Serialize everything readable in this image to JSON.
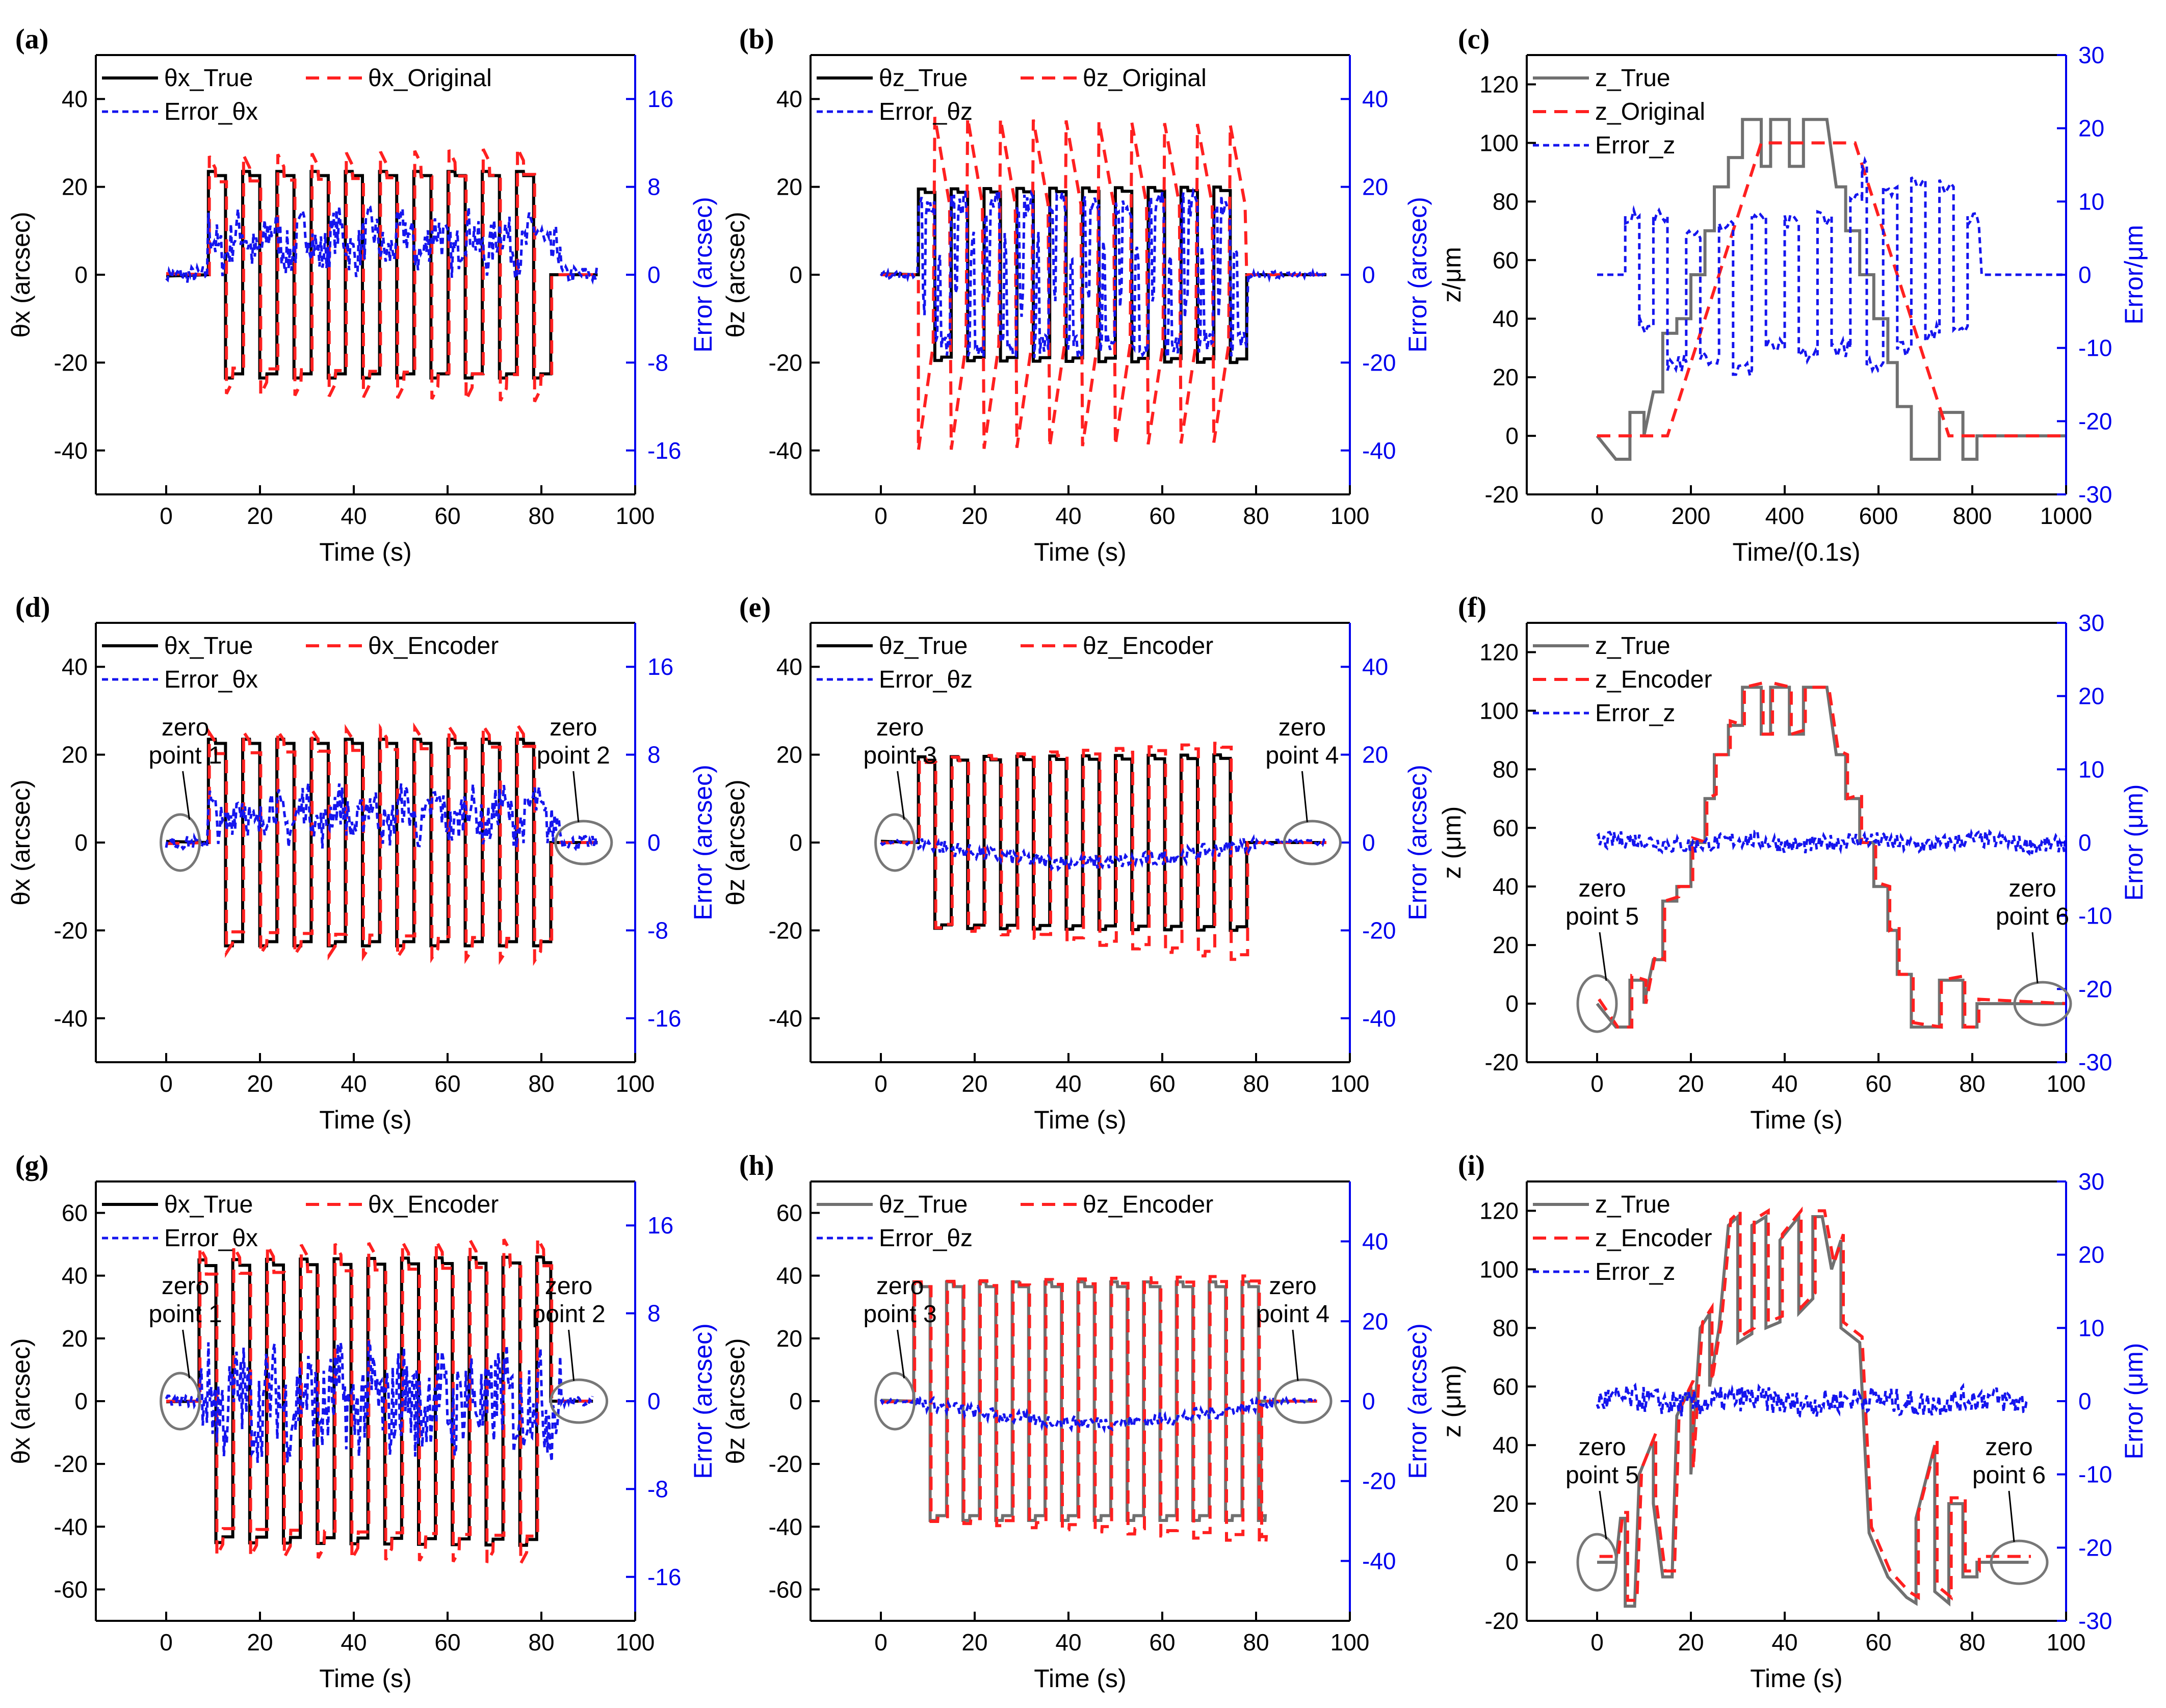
{
  "figure": {
    "colors": {
      "true_black": "#000000",
      "true_gray": "#707070",
      "red": "#ff2020",
      "blue": "#1515ee",
      "axis_blue": "#0000ee"
    },
    "series_styles": {
      "true": "solid",
      "estimate": "dashed",
      "error": "dotted"
    }
  },
  "chart_data": [
    {
      "panel": "(a)",
      "type": "line",
      "xlabel": "Time (s)",
      "ylabel": "θx (arcsec)",
      "ylabel_right": "Error (arcsec)",
      "xlim": [
        -15,
        100
      ],
      "ylim": [
        -50,
        50
      ],
      "ylim_right": [
        -20,
        20
      ],
      "xticks": [
        0,
        20,
        40,
        60,
        80,
        100
      ],
      "yticks": [
        -40,
        -20,
        0,
        20,
        40
      ],
      "yticks_right": [
        -16,
        -8,
        0,
        8,
        16
      ],
      "legend": [
        "θx_True",
        "θx_Original",
        "Error_θx"
      ],
      "series": [
        {
          "name": "θx_True",
          "style": "true_black",
          "kind": "square",
          "start": 9,
          "end": 82,
          "period": 7.3,
          "amp": 23.5,
          "amp_end": 23.5,
          "first": 1,
          "pre": 0,
          "post": 0,
          "post_start": 82,
          "post_end": 92,
          "x0": 0
        },
        {
          "name": "θx_Original",
          "style": "red_dashed",
          "kind": "square",
          "start": 9.2,
          "end": 82.2,
          "period": 7.3,
          "amp": 23,
          "amp_end": 25,
          "first": 1,
          "pre": 0,
          "post": 0,
          "post_start": 82.2,
          "post_end": 92,
          "x0": 0,
          "overshoot": 4
        }
      ],
      "error": {
        "name": "Error_θx",
        "x_start": 0,
        "x_end": 92,
        "base": 3,
        "noise": 2.2,
        "pre_end": 9,
        "post_start": 84,
        "pre_noise": 0.8
      }
    },
    {
      "panel": "(b)",
      "type": "line",
      "xlabel": "Time (s)",
      "ylabel": "θz (arcsec)",
      "ylabel_right": "Error (arcsec)",
      "xlim": [
        -15,
        100
      ],
      "ylim": [
        -50,
        50
      ],
      "ylim_right": [
        -50,
        50
      ],
      "xticks": [
        0,
        20,
        40,
        60,
        80,
        100
      ],
      "yticks": [
        -40,
        -20,
        0,
        20,
        40
      ],
      "yticks_right": [
        -40,
        -20,
        0,
        20,
        40
      ],
      "legend": [
        "θz_True",
        "θz_Original",
        "Error_θz"
      ],
      "series": [
        {
          "name": "θz_True",
          "style": "true_black",
          "kind": "square",
          "start": 8,
          "end": 78,
          "period": 7.0,
          "amp": 19.5,
          "amp_end": 20,
          "first": 1,
          "pre": 0,
          "post": 0,
          "post_start": 78,
          "post_end": 95,
          "x0": 0
        },
        {
          "name": "θz_Original",
          "style": "red_dashed",
          "kind": "spike",
          "start": 8,
          "end": 78,
          "period": 7.0,
          "amp": 36,
          "amp_end": 34,
          "first": -1,
          "pre": 0,
          "post": 0,
          "post_start": 78,
          "post_end": 95,
          "x0": 0
        }
      ],
      "error": {
        "name": "Error_θz",
        "x_start": 0,
        "x_end": 95,
        "kind": "follow",
        "scale": 0.9,
        "pre_end": 8,
        "post_start": 78,
        "pre_noise": 0.3
      }
    },
    {
      "panel": "(c)",
      "type": "line",
      "xlabel": "Time/(0.1s)",
      "ylabel": "z/μm",
      "ylabel_right": "Error/μm",
      "xlim": [
        -150,
        1000
      ],
      "ylim": [
        -20,
        130
      ],
      "ylim_right": [
        -30,
        30
      ],
      "xticks": [
        0,
        200,
        400,
        600,
        800,
        1000
      ],
      "yticks": [
        -20,
        0,
        20,
        40,
        60,
        80,
        100,
        120
      ],
      "yticks_right": [
        -30,
        -20,
        -10,
        0,
        10,
        20,
        30
      ],
      "legend": [
        "z_True",
        "z_Original",
        "Error_z"
      ],
      "series": [
        {
          "name": "z_True",
          "style": "gray",
          "kind": "ramp_true",
          "xscale": 10
        },
        {
          "name": "z_Original",
          "style": "red_dashed",
          "kind": "ramp_smooth",
          "xscale": 10
        }
      ],
      "error": {
        "name": "Error_z",
        "x_start": 0,
        "x_end": 1000,
        "kind": "zsq",
        "xscale": 10
      }
    },
    {
      "panel": "(d)",
      "type": "line",
      "xlabel": "Time (s)",
      "ylabel": "θx (arcsec)",
      "ylabel_right": "Error (arcsec)",
      "xlim": [
        -15,
        100
      ],
      "ylim": [
        -50,
        50
      ],
      "ylim_right": [
        -20,
        20
      ],
      "xticks": [
        0,
        20,
        40,
        60,
        80,
        100
      ],
      "yticks": [
        -40,
        -20,
        0,
        20,
        40
      ],
      "yticks_right": [
        -16,
        -8,
        0,
        8,
        16
      ],
      "legend": [
        "θx_True",
        "θx_Encoder",
        "Error_θx"
      ],
      "annotations": [
        {
          "label1": "zero",
          "label2": "point 1"
        },
        {
          "label1": "zero",
          "label2": "point 2"
        }
      ],
      "series": [
        {
          "name": "θx_True",
          "style": "true_black",
          "kind": "square",
          "start": 9,
          "end": 82,
          "period": 7.3,
          "amp": 23.5,
          "amp_end": 23.5,
          "first": 1,
          "pre": 0,
          "post": 0,
          "post_start": 82,
          "post_end": 92,
          "x0": 0
        },
        {
          "name": "θx_Encoder",
          "style": "red_dashed",
          "kind": "square",
          "start": 9.2,
          "end": 82.2,
          "period": 7.3,
          "amp": 22,
          "amp_end": 24,
          "first": 1,
          "pre": 0,
          "post": 0,
          "post_start": 82.2,
          "post_end": 92,
          "x0": 0,
          "overshoot": 3
        }
      ],
      "error": {
        "name": "Error_θx",
        "x_start": 0,
        "x_end": 92,
        "base": 2.5,
        "noise": 2.0,
        "pre_end": 9,
        "post_start": 84,
        "pre_noise": 0.6
      }
    },
    {
      "panel": "(e)",
      "type": "line",
      "xlabel": "Time (s)",
      "ylabel": "θz (arcsec)",
      "ylabel_right": "Error (arcsec)",
      "xlim": [
        -15,
        100
      ],
      "ylim": [
        -50,
        50
      ],
      "ylim_right": [
        -50,
        50
      ],
      "xticks": [
        0,
        20,
        40,
        60,
        80,
        100
      ],
      "yticks": [
        -40,
        -20,
        0,
        20,
        40
      ],
      "yticks_right": [
        -40,
        -20,
        0,
        20,
        40
      ],
      "legend": [
        "θz_True",
        "θz_Encoder",
        "Error_θz"
      ],
      "annotations": [
        {
          "label1": "zero",
          "label2": "point 3"
        },
        {
          "label1": "zero",
          "label2": "point 4"
        }
      ],
      "series": [
        {
          "name": "θz_True",
          "style": "true_black",
          "kind": "square",
          "start": 8,
          "end": 78,
          "period": 7.0,
          "amp": 19.5,
          "amp_end": 20,
          "first": 1,
          "pre": 0,
          "post": 0,
          "post_start": 78,
          "post_end": 95,
          "x0": 0
        },
        {
          "name": "θz_Encoder",
          "style": "red_dashed",
          "kind": "square",
          "start": 8.2,
          "end": 78.2,
          "period": 7.0,
          "amp": 19,
          "amp_end": 23,
          "first": 1,
          "pre": 0,
          "post": 0,
          "post_start": 78.2,
          "post_end": 95,
          "x0": 0,
          "neg_extra": 4
        }
      ],
      "error": {
        "name": "Error_θz",
        "x_start": 0,
        "x_end": 95,
        "kind": "drift",
        "pre_end": 8,
        "post_start": 80,
        "depth": -5
      }
    },
    {
      "panel": "(f)",
      "type": "line",
      "xlabel": "Time (s)",
      "ylabel": "z (μm)",
      "ylabel_right": "Error (μm)",
      "xlim": [
        -15,
        100
      ],
      "ylim": [
        -20,
        130
      ],
      "ylim_right": [
        -30,
        30
      ],
      "xticks": [
        0,
        20,
        40,
        60,
        80,
        100
      ],
      "yticks": [
        -20,
        0,
        20,
        40,
        60,
        80,
        100,
        120
      ],
      "yticks_right": [
        -30,
        -20,
        -10,
        0,
        10,
        20,
        30
      ],
      "legend": [
        "z_True",
        "z_Encoder",
        "Error_z"
      ],
      "annotations": [
        {
          "label1": "zero",
          "label2": "point 5"
        },
        {
          "label1": "zero",
          "label2": "point 6"
        }
      ],
      "series": [
        {
          "name": "z_True",
          "style": "gray",
          "kind": "ramp_true",
          "xscale": 1
        },
        {
          "name": "z_Encoder",
          "style": "red_dashed",
          "kind": "ramp_true_shift",
          "xscale": 1
        }
      ],
      "error": {
        "name": "Error_z",
        "x_start": 0,
        "x_end": 100,
        "kind": "small",
        "amp": 1.2
      }
    },
    {
      "panel": "(g)",
      "type": "line",
      "xlabel": "Time (s)",
      "ylabel": "θx (arcsec)",
      "ylabel_right": "Error (arcsec)",
      "xlim": [
        -15,
        100
      ],
      "ylim": [
        -70,
        70
      ],
      "ylim_right": [
        -20,
        20
      ],
      "xticks": [
        0,
        20,
        40,
        60,
        80,
        100
      ],
      "yticks": [
        -60,
        -40,
        -20,
        0,
        20,
        40,
        60
      ],
      "yticks_right": [
        -16,
        -8,
        0,
        8,
        16
      ],
      "legend": [
        "θx_True",
        "θx_Encoder",
        "Error_θx"
      ],
      "annotations": [
        {
          "label1": "zero",
          "label2": "point 1"
        },
        {
          "label1": "zero",
          "label2": "point 2"
        }
      ],
      "series": [
        {
          "name": "θx_True",
          "style": "true_black",
          "kind": "square",
          "start": 7,
          "end": 82,
          "period": 7.2,
          "amp": 45,
          "amp_end": 46,
          "first": 1,
          "pre": 0,
          "post": 0,
          "post_start": 82,
          "post_end": 91,
          "x0": 0
        },
        {
          "name": "θx_Encoder",
          "style": "red_dashed",
          "kind": "square",
          "start": 7.2,
          "end": 82.2,
          "period": 7.2,
          "amp": 44,
          "amp_end": 47,
          "first": 1,
          "pre": 0,
          "post": 0,
          "post_start": 82.2,
          "post_end": 91,
          "x0": 0,
          "overshoot": 5
        }
      ],
      "error": {
        "name": "Error_θx",
        "x_start": 0,
        "x_end": 91,
        "base": 0,
        "noise": 4.5,
        "pre_end": 7,
        "post_start": 84,
        "pre_noise": 0.5
      }
    },
    {
      "panel": "(h)",
      "type": "line",
      "xlabel": "Time (s)",
      "ylabel": "θz (arcsec)",
      "ylabel_right": "Error (arcsec)",
      "xlim": [
        -15,
        100
      ],
      "ylim": [
        -70,
        70
      ],
      "ylim_right": [
        -55,
        55
      ],
      "xticks": [
        0,
        20,
        40,
        60,
        80,
        100
      ],
      "yticks": [
        -60,
        -40,
        -20,
        0,
        20,
        40,
        60
      ],
      "yticks_right": [
        -40,
        -20,
        0,
        20,
        40
      ],
      "legend": [
        "θz_True",
        "θz_Encoder",
        "Error_θz"
      ],
      "annotations": [
        {
          "label1": "zero",
          "label2": "point 3"
        },
        {
          "label1": "zero",
          "label2": "point 4"
        }
      ],
      "series": [
        {
          "name": "θz_True",
          "style": "gray",
          "kind": "square",
          "start": 7,
          "end": 81,
          "period": 7.0,
          "amp": 38,
          "amp_end": 38,
          "first": 1,
          "pre": 0,
          "post": 0,
          "post_start": 81,
          "post_end": 93,
          "x0": 0
        },
        {
          "name": "θz_Encoder",
          "style": "red_dashed",
          "kind": "square",
          "start": 7.2,
          "end": 81.2,
          "period": 7.0,
          "amp": 38,
          "amp_end": 40,
          "first": 1,
          "pre": 0,
          "post": 0,
          "post_start": 81.2,
          "post_end": 93,
          "x0": 0,
          "neg_extra": 5
        }
      ],
      "error": {
        "name": "Error_θz",
        "x_start": 0,
        "x_end": 93,
        "kind": "drift",
        "pre_end": 7,
        "post_start": 84,
        "depth": -6
      }
    },
    {
      "panel": "(i)",
      "type": "line",
      "xlabel": "Time (s)",
      "ylabel": "z (μm)",
      "ylabel_right": "Error (μm)",
      "xlim": [
        -15,
        100
      ],
      "ylim": [
        -20,
        130
      ],
      "ylim_right": [
        -30,
        30
      ],
      "xticks": [
        0,
        20,
        40,
        60,
        80,
        100
      ],
      "yticks": [
        -20,
        0,
        20,
        40,
        60,
        80,
        100,
        120
      ],
      "yticks_right": [
        -30,
        -20,
        -10,
        0,
        10,
        20,
        30
      ],
      "legend": [
        "z_True",
        "z_Encoder",
        "Error_z"
      ],
      "annotations": [
        {
          "label1": "zero",
          "label2": "point 5"
        },
        {
          "label1": "zero",
          "label2": "point 6"
        }
      ],
      "series": [
        {
          "name": "z_True",
          "style": "gray",
          "kind": "ramp_big",
          "xscale": 1
        },
        {
          "name": "z_Encoder",
          "style": "red_dashed",
          "kind": "ramp_big_shift",
          "xscale": 1
        }
      ],
      "error": {
        "name": "Error_z",
        "x_start": 0,
        "x_end": 92,
        "kind": "small",
        "amp": 1.8
      }
    }
  ]
}
